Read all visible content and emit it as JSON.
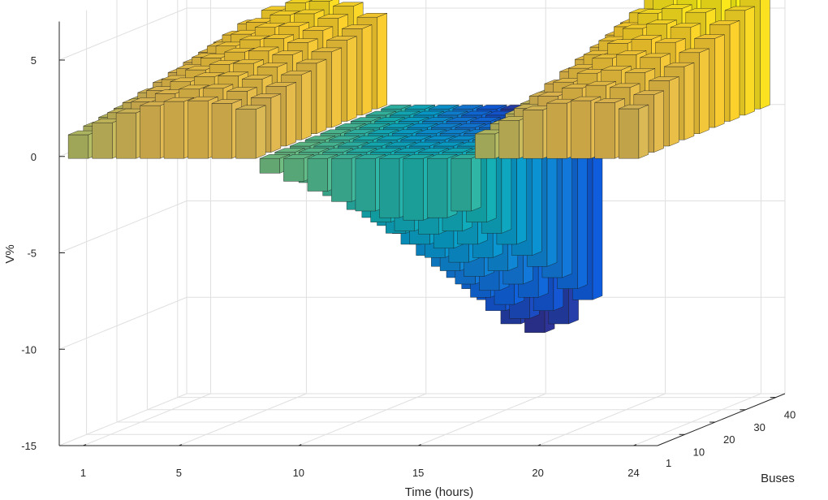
{
  "chart_data": {
    "type": "bar3",
    "title": "",
    "xlabel": "Time (hours)",
    "ylabel": "Buses",
    "zlabel": "V%",
    "xlim": [
      0,
      25
    ],
    "ylim": [
      1,
      43
    ],
    "zlim": [
      -15,
      7
    ],
    "grid": true,
    "colormap": "parula",
    "x_ticks": [
      "1",
      "5",
      "10",
      "15",
      "20",
      "24"
    ],
    "y_ticks": [
      "1",
      "10",
      "20",
      "30",
      "40"
    ],
    "z_ticks": [
      "5",
      "0",
      "-5",
      "-10",
      "-15"
    ],
    "x_tick_values": [
      1,
      5,
      10,
      15,
      20,
      24
    ],
    "y_tick_values": [
      1,
      10,
      20,
      30,
      40
    ],
    "z_tick_values": [
      5,
      0,
      -5,
      -10,
      -15
    ],
    "bus_groups": [
      1,
      6,
      11,
      16,
      21,
      26,
      31,
      36,
      41
    ],
    "series": [
      {
        "name": "hours 1-8",
        "hours": [
          1,
          8
        ],
        "shape": "rise",
        "peak_at_bus_1": 3.0,
        "peak_at_bus_41": 5.6
      },
      {
        "name": "hours 9-17",
        "hours": [
          9,
          17
        ],
        "shape": "dip",
        "dip_at_bus_1": -3.2,
        "dip_at_bus_41": -11.6,
        "min_hour": 15
      },
      {
        "name": "hours 18-24",
        "hours": [
          18,
          24
        ],
        "shape": "rise",
        "peak_at_bus_1": 3.0,
        "peak_at_bus_41": 6.8
      }
    ]
  },
  "colors": {
    "background": "#ffffff",
    "axis": "#262626",
    "grid": "#dfdfdf",
    "bar_edge": "#1a1a1a"
  }
}
